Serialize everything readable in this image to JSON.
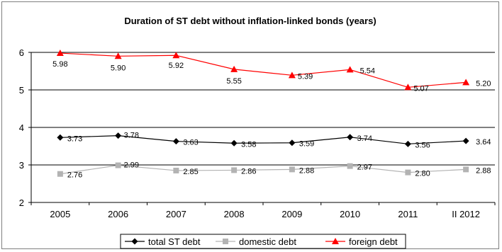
{
  "chart_data": {
    "type": "line",
    "title": "Duration of ST debt without inflation-linked bonds (years)",
    "categories": [
      "2005",
      "2006",
      "2007",
      "2008",
      "2009",
      "2010",
      "2011",
      "II 2012"
    ],
    "ylim": [
      2,
      6
    ],
    "yticks": [
      "2",
      "3",
      "4",
      "5",
      "6"
    ],
    "grid": "horizontal",
    "legend_position": "bottom",
    "series": [
      {
        "name": "total ST debt",
        "color": "#000000",
        "marker": "diamond",
        "values": [
          3.73,
          3.78,
          3.63,
          3.58,
          3.59,
          3.74,
          3.56,
          3.64
        ],
        "labels": [
          "3.73",
          "3.78",
          "3.63",
          "3.58",
          "3.59",
          "3.74",
          "3.56",
          "3.64"
        ]
      },
      {
        "name": "domestic debt",
        "color": "#b3b3b3",
        "marker": "square",
        "values": [
          2.76,
          2.99,
          2.85,
          2.86,
          2.88,
          2.97,
          2.8,
          2.88
        ],
        "labels": [
          "2.76",
          "2.99",
          "2.85",
          "2.86",
          "2.88",
          "2.97",
          "2.80",
          "2.88"
        ]
      },
      {
        "name": "foreign debt",
        "color": "#ff0000",
        "marker": "triangle",
        "values": [
          5.98,
          5.9,
          5.92,
          5.55,
          5.39,
          5.54,
          5.07,
          5.2
        ],
        "labels": [
          "5.98",
          "5.90",
          "5.92",
          "5.55",
          "5.39",
          "5.54",
          "5.07",
          "5.20"
        ]
      }
    ]
  }
}
